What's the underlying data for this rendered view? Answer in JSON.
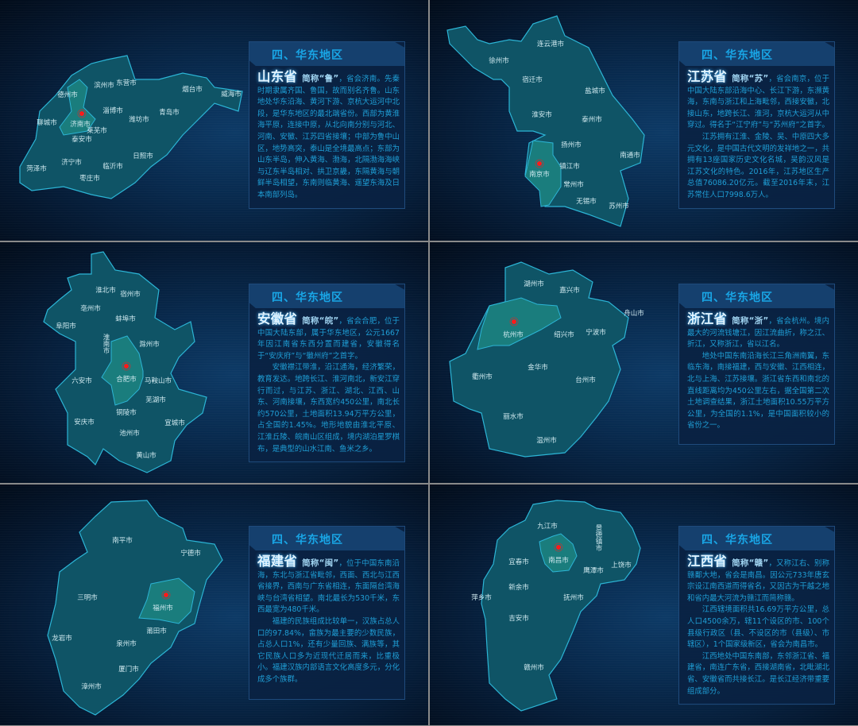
{
  "region_header": "四、华东地区",
  "colors": {
    "region_fill": "#0f5466",
    "capital_fill": "#1a7d7d",
    "border": "#2cb5d6",
    "capital_dot": "#ff1a1a",
    "header_text": "#19a6e6",
    "body_text": "#1f9fd6"
  },
  "slides": [
    {
      "name": "山东省",
      "abbr": "简称“鲁”",
      "intro": "，省会济南。先秦时期隶属齐国、鲁国，故而别名齐鲁。山东地处华东沿海、黄河下游、京杭大运河中北段，是华东地区的最北端省份。西部为黄淮海平原，连接中原，从北向南分别与河北、河南、安徽、江苏四省接壤；中部为鲁中山区，地势高突，泰山是全境最高点；东部为山东半岛，伸入黄海、渤海，北隔渤海海峡与辽东半岛相对、拱卫京畿，东隔黄海与朝鲜半岛相望，东南则临黄海、遥望东海及日本南部列岛。",
      "paragraphs": [],
      "capital": "济南市",
      "cities": [
        "德州市",
        "滨州市",
        "东营市",
        "烟台市",
        "威海市",
        "聊城市",
        "济南市",
        "淄博市",
        "潍坊市",
        "青岛市",
        "莱芜市",
        "泰安市",
        "日照市",
        "菏泽市",
        "济宁市",
        "临沂市",
        "枣庄市"
      ]
    },
    {
      "name": "江苏省",
      "abbr": "简称“苏”",
      "intro": "，省会南京，位于中国大陆东部沿海中心、长江下游，东濒黄海，东南与浙江和上海毗邻，西接安徽，北接山东，地跨长江、淮河，京杭大运河从中穿过。得名于“江宁府”与“苏州府”之首字。",
      "paragraphs": [
        "江苏拥有江淮、金陵、吴、中原四大多元文化，是中国古代文明的发祥地之一，共拥有13座国家历史文化名城，吴韵汉风是江苏文化的特色。2016年，江苏地区生产总值76086.20亿元。截至2016年末，江苏常住人口7998.6万人。"
      ],
      "capital": "南京市",
      "cities": [
        "连云港市",
        "徐州市",
        "宿迁市",
        "盐城市",
        "淮安市",
        "泰州市",
        "扬州市",
        "南通市",
        "南京市",
        "镇江市",
        "常州市",
        "无锡市",
        "苏州市"
      ]
    },
    {
      "name": "安徽省",
      "abbr": "简称“皖”",
      "intro": "，省会合肥，位于中国大陆东部，属于华东地区，公元1667年因江南省东西分置而建省，安徽得名于“安庆府”与“徽州府”之首字。",
      "paragraphs": [
        "安徽襟江带淮，沿江通海，经济繁荣，教育发达。地跨长江、淮河南北，新安江穿行而过，与江苏、浙江、湖北、江西、山东、河南接壤，东西宽约450公里，南北长约570公里，土地面积13.94万平方公里，占全国的1.45%。地形地貌由淮北平原、江淮丘陵、皖南山区组成，境内湖泊星罗棋布，是典型的山水江南、鱼米之乡。"
      ],
      "capital": "合肥市",
      "cities": [
        "淮北市",
        "宿州市",
        "亳州市",
        "蚌埠市",
        "阜阳市",
        "淮南市",
        "滁州市",
        "合肥市",
        "马鞍山市",
        "六安市",
        "芜湖市",
        "铜陵市",
        "安庆市",
        "宣城市",
        "池州市",
        "黄山市"
      ]
    },
    {
      "name": "浙江省",
      "abbr": "简称“浙”",
      "intro": "，省会杭州。境内最大的河流钱塘江，因江流曲折，称之江、折江，又称浙江，省以江名。",
      "paragraphs": [
        "地处中国东南沿海长江三角洲南翼，东临东海，南接福建，西与安徽、江西相连，北与上海、江苏接壤。浙江省东西和南北的直线距离均为450公里左右，据全国第二次土地调查结果，浙江土地面积10.55万平方公里，为全国的1.1%，是中国面积较小的省份之一。"
      ],
      "capital": "杭州市",
      "cities": [
        "湖州市",
        "嘉兴市",
        "舟山市",
        "杭州市",
        "绍兴市",
        "宁波市",
        "金华市",
        "衢州市",
        "台州市",
        "丽水市",
        "温州市"
      ]
    },
    {
      "name": "福建省",
      "abbr": "简称“闽”",
      "intro": "，位于中国东南沿海，东北与浙江省毗邻，西面、西北与江西省接界，西南与广东省相连，东面隔台湾海峡与台湾省相望。南北最长为530千米，东西最宽为480千米。",
      "paragraphs": [
        "福建的民族组成比较单一，汉族占总人口的97.84%，畲族为最主要的少数民族，占总人口1%，还有少量回族、满族等，其它民族人口多为近现代迁居而来，比重极小。福建汉族内部语言文化高度多元，分化成多个族群。"
      ],
      "capital": "福州市",
      "cities": [
        "南平市",
        "宁德市",
        "三明市",
        "福州市",
        "莆田市",
        "龙岩市",
        "泉州市",
        "厦门市",
        "漳州市"
      ]
    },
    {
      "name": "江西省",
      "abbr": "简称“赣”",
      "intro": "，又称江右、别称赣鄱大地，省会是南昌。因公元733年唐玄宗设江南西道而得省名，又因古为干越之地和省内最大河流为赣江而简称赣。",
      "paragraphs": [
        "江西辖境面积共16.69万平方公里，总人口4500余万，辖11个设区的市、100个县级行政区（县、不设区的市（县级）、市辖区），1个国家级新区，省会为南昌市。",
        "江西地处中国东南部，东邻浙江省、福建省，南连广东省，西接湖南省，北毗湖北省、安徽省而共接长江。是长江经济带重要组成部分。"
      ],
      "capital": "南昌市",
      "cities": [
        "九江市",
        "景德镇市",
        "宜春市",
        "南昌市",
        "上饶市",
        "鹰潭市",
        "新余市",
        "萍乡市",
        "抚州市",
        "吉安市",
        "赣州市"
      ]
    }
  ]
}
